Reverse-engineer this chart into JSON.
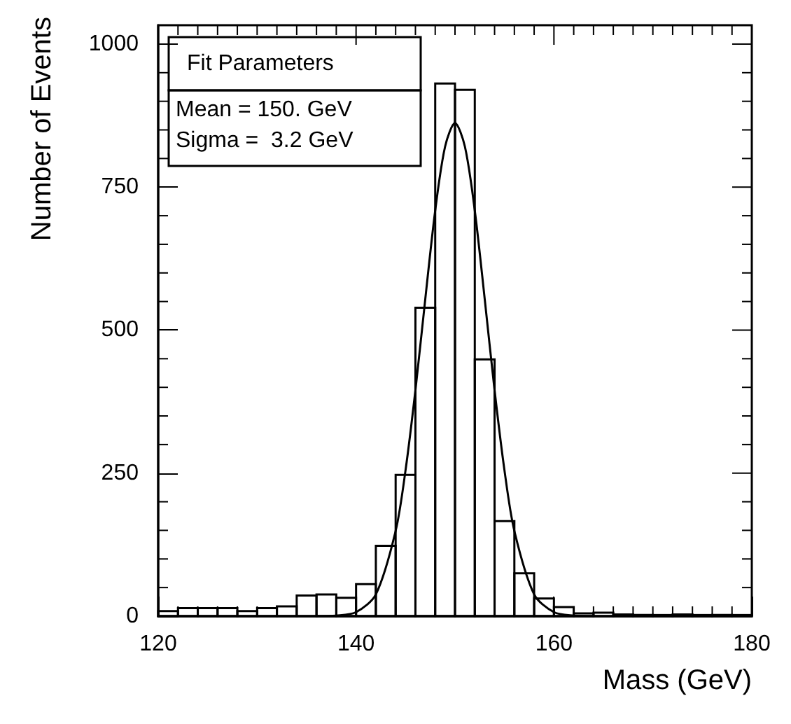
{
  "chart_data": {
    "type": "histogram",
    "xlabel": "Mass (GeV)",
    "ylabel": "Number of Events",
    "bins": [
      120,
      122,
      124,
      126,
      128,
      130,
      132,
      134,
      136,
      138,
      140,
      142,
      144,
      146,
      148,
      150,
      152,
      154,
      156,
      158,
      160,
      162,
      164,
      166,
      168,
      170,
      172,
      174,
      176,
      178,
      180
    ],
    "values": [
      9,
      14,
      14,
      14,
      9,
      14,
      17,
      36,
      38,
      32,
      56,
      123,
      247,
      539,
      931,
      920,
      449,
      166,
      75,
      31,
      16,
      5,
      6,
      3,
      2,
      2,
      3,
      2,
      2,
      2
    ],
    "color": "#000000",
    "series": [
      {
        "type": "line",
        "color": "#000000",
        "x": [
          136,
          138,
          140,
          142,
          144,
          145,
          146,
          147,
          148,
          149,
          150,
          151,
          152,
          153,
          154,
          155,
          156,
          158,
          160,
          162,
          164
        ],
        "values": [
          0,
          1,
          7,
          38,
          149,
          255,
          395,
          555,
          709,
          821,
          862,
          821,
          709,
          555,
          395,
          255,
          149,
          38,
          7,
          1,
          0
        ]
      }
    ],
    "xlim": [
      120,
      180
    ],
    "xticks": [
      120,
      140,
      160,
      180
    ],
    "ylim": [
      0,
      1033
    ],
    "yticks": [
      0,
      250,
      500,
      750,
      1000
    ],
    "grid": false,
    "marker": "none",
    "line_style": "solid",
    "annotations": [
      "Fit Parameters",
      "Mean = 150. GeV",
      "Sigma =  3.2 GeV"
    ]
  }
}
